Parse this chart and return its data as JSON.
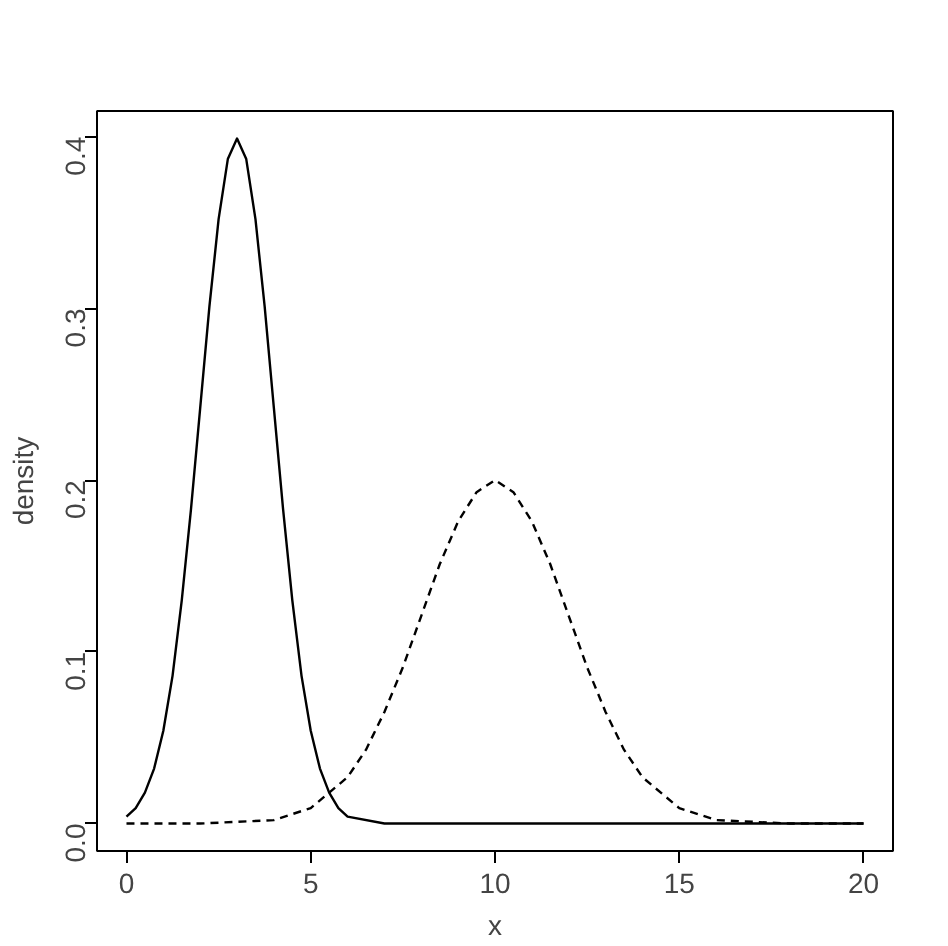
{
  "chart_data": {
    "type": "line",
    "xlabel": "x",
    "ylabel": "density",
    "xlim": [
      -0.8,
      20.8
    ],
    "ylim": [
      -0.016,
      0.415
    ],
    "xticks": [
      0,
      5,
      10,
      15,
      20
    ],
    "yticks": [
      {
        "value": 0,
        "label": "0.0"
      },
      0.1,
      0.2,
      0.3,
      0.4
    ],
    "grid": false,
    "marker": "none",
    "series": [
      {
        "color": "#000000",
        "line_style": "solid",
        "x": [
          0,
          0.25,
          0.5,
          0.75,
          1,
          1.25,
          1.5,
          1.75,
          2,
          2.25,
          2.5,
          2.75,
          3,
          3.25,
          3.5,
          3.75,
          4,
          4.25,
          4.5,
          4.75,
          5,
          5.25,
          5.5,
          5.75,
          6,
          7,
          8,
          10,
          15,
          20
        ],
        "values": [
          0.004,
          0.009,
          0.018,
          0.032,
          0.054,
          0.086,
          0.13,
          0.183,
          0.242,
          0.301,
          0.352,
          0.387,
          0.399,
          0.387,
          0.352,
          0.301,
          0.242,
          0.183,
          0.13,
          0.086,
          0.054,
          0.032,
          0.018,
          0.009,
          0.004,
          0,
          0,
          0,
          0,
          0
        ]
      },
      {
        "color": "#000000",
        "line_style": "dashed",
        "x": [
          0,
          2,
          4,
          5,
          6,
          6.5,
          7,
          7.5,
          8,
          8.5,
          9,
          9.5,
          10,
          10.5,
          11,
          11.5,
          12,
          12.5,
          13,
          13.5,
          14,
          15,
          16,
          18,
          20
        ],
        "values": [
          0,
          0,
          0.002,
          0.009,
          0.027,
          0.043,
          0.065,
          0.091,
          0.121,
          0.151,
          0.176,
          0.193,
          0.2,
          0.193,
          0.176,
          0.151,
          0.121,
          0.091,
          0.065,
          0.043,
          0.027,
          0.009,
          0.002,
          0,
          0
        ]
      }
    ]
  }
}
